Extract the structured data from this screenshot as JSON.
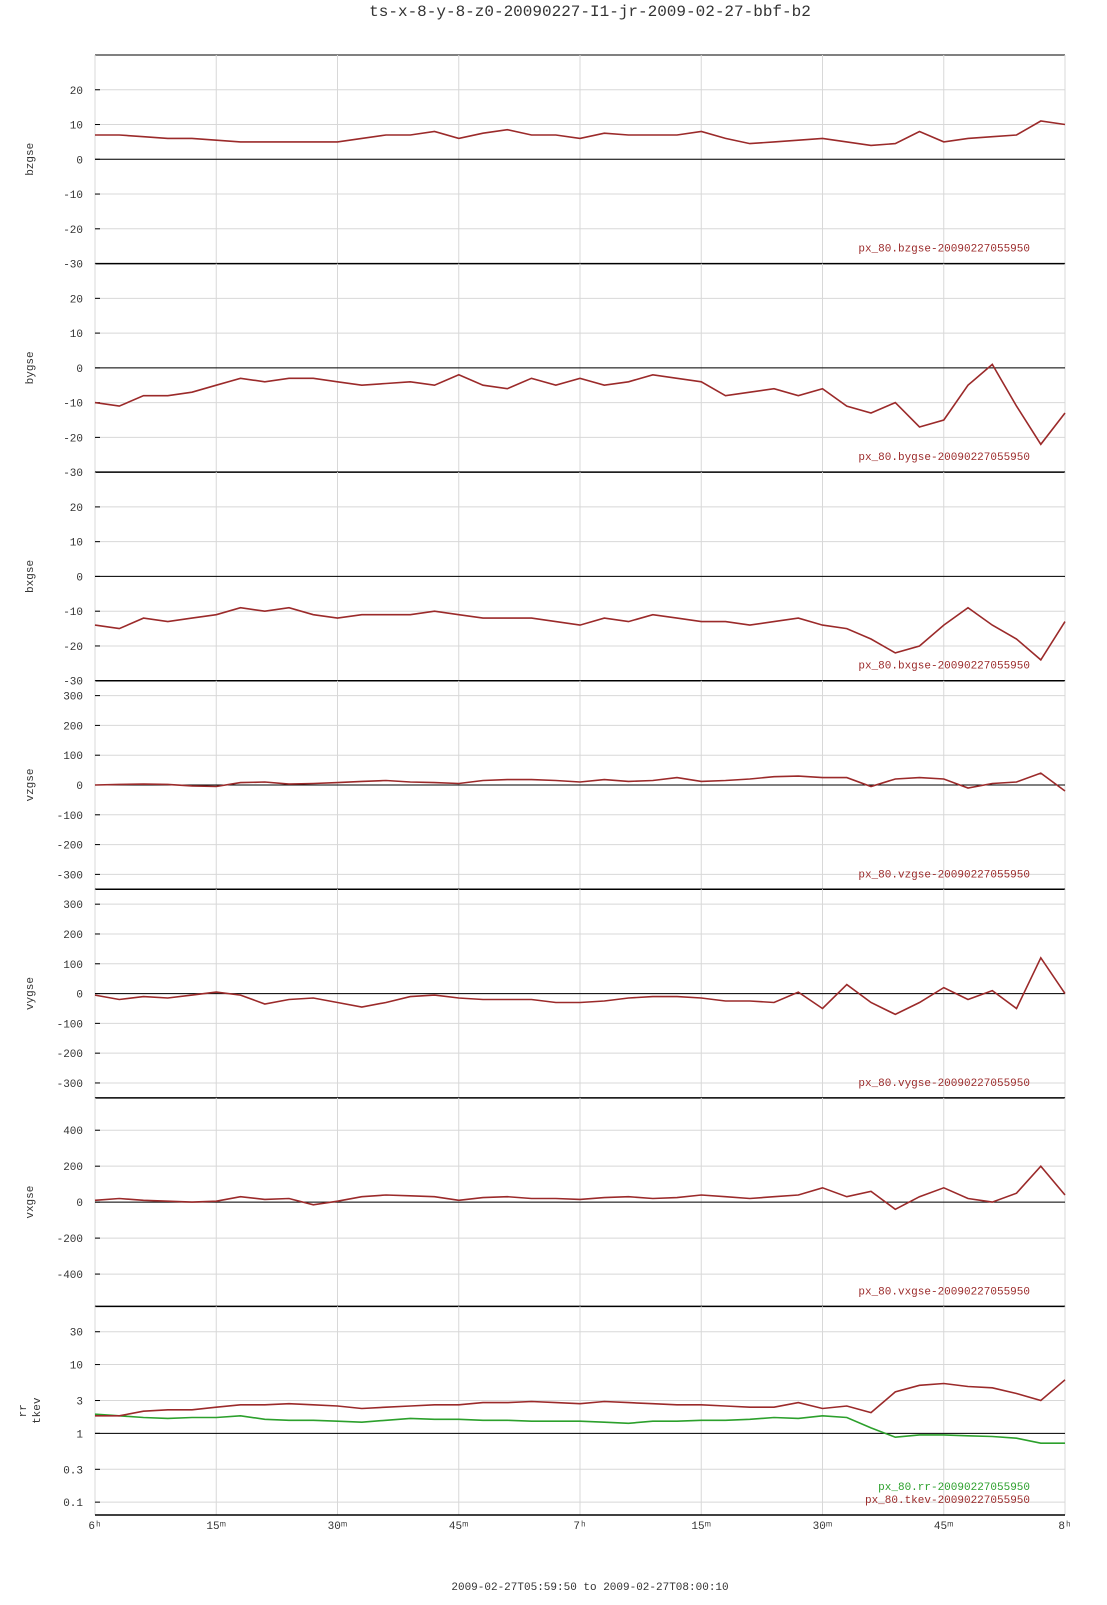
{
  "title": "ts-x-8-y-8-z0-20090227-I1-jr-2009-02-27-bbf-b2",
  "xlabel": "2009-02-27T05:59:50 to 2009-02-27T08:00:10",
  "xticks": [
    {
      "value": 0,
      "label": "6ʰ"
    },
    {
      "value": 15,
      "label": "15ᵐ"
    },
    {
      "value": 30,
      "label": "30ᵐ"
    },
    {
      "value": 45,
      "label": "45ᵐ"
    },
    {
      "value": 60,
      "label": "7ʰ"
    },
    {
      "value": 75,
      "label": "15ᵐ"
    },
    {
      "value": 90,
      "label": "30ᵐ"
    },
    {
      "value": 105,
      "label": "45ᵐ"
    },
    {
      "value": 120,
      "label": "8ʰ"
    }
  ],
  "chart_data": [
    {
      "type": "line",
      "ylabel": [
        "bzgse"
      ],
      "xlim": [
        0,
        120
      ],
      "ylim": [
        -30,
        30
      ],
      "yticks": [
        -30,
        -20,
        -10,
        0,
        10,
        20
      ],
      "x": [
        0,
        3,
        6,
        9,
        12,
        15,
        18,
        21,
        24,
        27,
        30,
        33,
        36,
        39,
        42,
        45,
        48,
        51,
        54,
        57,
        60,
        63,
        66,
        69,
        72,
        75,
        78,
        81,
        84,
        87,
        90,
        93,
        96,
        99,
        102,
        105,
        108,
        111,
        114,
        117,
        120
      ],
      "series": [
        {
          "name": "px_80.bzgse-20090227055950",
          "color": "#9b2a2a",
          "values": [
            7,
            7,
            6.5,
            6,
            6,
            5.5,
            5,
            5,
            5,
            5,
            5,
            6,
            7,
            7,
            8,
            6,
            7.5,
            8.5,
            7,
            7,
            6,
            7.5,
            7,
            7,
            7,
            8,
            6,
            4.5,
            5,
            5.5,
            6,
            5,
            4,
            4.5,
            8,
            5,
            6,
            6.5,
            7,
            11,
            10
          ]
        }
      ]
    },
    {
      "type": "line",
      "ylabel": [
        "bygse"
      ],
      "xlim": [
        0,
        120
      ],
      "ylim": [
        -30,
        30
      ],
      "yticks": [
        -30,
        -20,
        -10,
        0,
        10,
        20
      ],
      "x": [
        0,
        3,
        6,
        9,
        12,
        15,
        18,
        21,
        24,
        27,
        30,
        33,
        36,
        39,
        42,
        45,
        48,
        51,
        54,
        57,
        60,
        63,
        66,
        69,
        72,
        75,
        78,
        81,
        84,
        87,
        90,
        93,
        96,
        99,
        102,
        105,
        108,
        111,
        114,
        117,
        120
      ],
      "series": [
        {
          "name": "px_80.bygse-20090227055950",
          "color": "#9b2a2a",
          "values": [
            -10,
            -11,
            -8,
            -8,
            -7,
            -5,
            -3,
            -4,
            -3,
            -3,
            -4,
            -5,
            -4.5,
            -4,
            -5,
            -2,
            -5,
            -6,
            -3,
            -5,
            -3,
            -5,
            -4,
            -2,
            -3,
            -4,
            -8,
            -7,
            -6,
            -8,
            -6,
            -11,
            -13,
            -10,
            -17,
            -15,
            -5,
            1,
            -11,
            -22,
            -13
          ]
        }
      ]
    },
    {
      "type": "line",
      "ylabel": [
        "bxgse"
      ],
      "xlim": [
        0,
        120
      ],
      "ylim": [
        -30,
        30
      ],
      "yticks": [
        -30,
        -20,
        -10,
        0,
        10,
        20
      ],
      "x": [
        0,
        3,
        6,
        9,
        12,
        15,
        18,
        21,
        24,
        27,
        30,
        33,
        36,
        39,
        42,
        45,
        48,
        51,
        54,
        57,
        60,
        63,
        66,
        69,
        72,
        75,
        78,
        81,
        84,
        87,
        90,
        93,
        96,
        99,
        102,
        105,
        108,
        111,
        114,
        117,
        120
      ],
      "series": [
        {
          "name": "px_80.bxgse-20090227055950",
          "color": "#9b2a2a",
          "values": [
            -14,
            -15,
            -12,
            -13,
            -12,
            -11,
            -9,
            -10,
            -9,
            -11,
            -12,
            -11,
            -11,
            -11,
            -10,
            -11,
            -12,
            -12,
            -12,
            -13,
            -14,
            -12,
            -13,
            -11,
            -12,
            -13,
            -13,
            -14,
            -13,
            -12,
            -14,
            -15,
            -18,
            -22,
            -20,
            -14,
            -9,
            -14,
            -18,
            -24,
            -13
          ]
        }
      ]
    },
    {
      "type": "line",
      "ylabel": [
        "vzgse"
      ],
      "xlim": [
        0,
        120
      ],
      "ylim": [
        -350,
        350
      ],
      "yticks": [
        -300,
        -200,
        -100,
        0,
        100,
        200,
        300
      ],
      "x": [
        0,
        3,
        6,
        9,
        12,
        15,
        18,
        21,
        24,
        27,
        30,
        33,
        36,
        39,
        42,
        45,
        48,
        51,
        54,
        57,
        60,
        63,
        66,
        69,
        72,
        75,
        78,
        81,
        84,
        87,
        90,
        93,
        96,
        99,
        102,
        105,
        108,
        111,
        114,
        117,
        120
      ],
      "series": [
        {
          "name": "px_80.vzgse-20090227055950",
          "color": "#9b2a2a",
          "values": [
            0,
            2,
            3,
            2,
            -3,
            -5,
            8,
            10,
            3,
            5,
            8,
            12,
            15,
            10,
            8,
            5,
            15,
            18,
            18,
            15,
            10,
            18,
            12,
            15,
            25,
            12,
            15,
            20,
            28,
            30,
            25,
            25,
            -5,
            20,
            25,
            20,
            -10,
            5,
            10,
            40,
            -20
          ]
        }
      ]
    },
    {
      "type": "line",
      "ylabel": [
        "vygse"
      ],
      "xlim": [
        0,
        120
      ],
      "ylim": [
        -350,
        350
      ],
      "yticks": [
        -300,
        -200,
        -100,
        0,
        100,
        200,
        300
      ],
      "x": [
        0,
        3,
        6,
        9,
        12,
        15,
        18,
        21,
        24,
        27,
        30,
        33,
        36,
        39,
        42,
        45,
        48,
        51,
        54,
        57,
        60,
        63,
        66,
        69,
        72,
        75,
        78,
        81,
        84,
        87,
        90,
        93,
        96,
        99,
        102,
        105,
        108,
        111,
        114,
        117,
        120
      ],
      "series": [
        {
          "name": "px_80.vygse-20090227055950",
          "color": "#9b2a2a",
          "values": [
            -5,
            -20,
            -10,
            -15,
            -5,
            5,
            -5,
            -35,
            -20,
            -15,
            -30,
            -45,
            -30,
            -10,
            -5,
            -15,
            -20,
            -20,
            -20,
            -30,
            -30,
            -25,
            -15,
            -10,
            -10,
            -15,
            -25,
            -25,
            -30,
            5,
            -50,
            30,
            -30,
            -70,
            -30,
            20,
            -20,
            10,
            -50,
            120,
            0
          ]
        }
      ]
    },
    {
      "type": "line",
      "ylabel": [
        "vxgse"
      ],
      "xlim": [
        0,
        120
      ],
      "ylim": [
        -580,
        580
      ],
      "yticks": [
        -400,
        -200,
        0,
        200,
        400
      ],
      "x": [
        0,
        3,
        6,
        9,
        12,
        15,
        18,
        21,
        24,
        27,
        30,
        33,
        36,
        39,
        42,
        45,
        48,
        51,
        54,
        57,
        60,
        63,
        66,
        69,
        72,
        75,
        78,
        81,
        84,
        87,
        90,
        93,
        96,
        99,
        102,
        105,
        108,
        111,
        114,
        117,
        120
      ],
      "series": [
        {
          "name": "px_80.vxgse-20090227055950",
          "color": "#9b2a2a",
          "values": [
            10,
            20,
            10,
            5,
            0,
            5,
            30,
            15,
            20,
            -15,
            5,
            30,
            40,
            35,
            30,
            10,
            25,
            30,
            20,
            20,
            15,
            25,
            30,
            20,
            25,
            40,
            30,
            20,
            30,
            40,
            80,
            30,
            60,
            -40,
            30,
            80,
            20,
            0,
            50,
            200,
            40
          ]
        }
      ]
    },
    {
      "type": "line",
      "ylabel": [
        "rr",
        "tkev"
      ],
      "log": true,
      "xlim": [
        0,
        120
      ],
      "ylim": [
        0.065,
        70
      ],
      "yticks": [
        0.1,
        0.3,
        1,
        3,
        10,
        30
      ],
      "x": [
        0,
        3,
        6,
        9,
        12,
        15,
        18,
        21,
        24,
        27,
        30,
        33,
        36,
        39,
        42,
        45,
        48,
        51,
        54,
        57,
        60,
        63,
        66,
        69,
        72,
        75,
        78,
        81,
        84,
        87,
        90,
        93,
        96,
        99,
        102,
        105,
        108,
        111,
        114,
        117,
        120
      ],
      "series": [
        {
          "name": "px_80.rr-20090227055950",
          "color": "#2ca02c",
          "values": [
            1.9,
            1.8,
            1.7,
            1.65,
            1.7,
            1.7,
            1.8,
            1.6,
            1.55,
            1.55,
            1.5,
            1.45,
            1.55,
            1.65,
            1.6,
            1.6,
            1.55,
            1.55,
            1.5,
            1.5,
            1.5,
            1.45,
            1.4,
            1.5,
            1.5,
            1.55,
            1.55,
            1.6,
            1.7,
            1.65,
            1.8,
            1.7,
            1.2,
            0.88,
            0.95,
            0.95,
            0.92,
            0.9,
            0.85,
            0.72,
            0.72
          ]
        },
        {
          "name": "px_80.tkev-20090227055950",
          "color": "#9b2a2a",
          "values": [
            1.8,
            1.8,
            2.1,
            2.2,
            2.2,
            2.4,
            2.6,
            2.6,
            2.7,
            2.6,
            2.5,
            2.3,
            2.4,
            2.5,
            2.6,
            2.6,
            2.8,
            2.8,
            2.9,
            2.8,
            2.7,
            2.9,
            2.8,
            2.7,
            2.6,
            2.6,
            2.5,
            2.4,
            2.4,
            2.8,
            2.3,
            2.5,
            2,
            4,
            5,
            5.3,
            4.8,
            4.6,
            3.8,
            3,
            6
          ]
        }
      ]
    }
  ]
}
